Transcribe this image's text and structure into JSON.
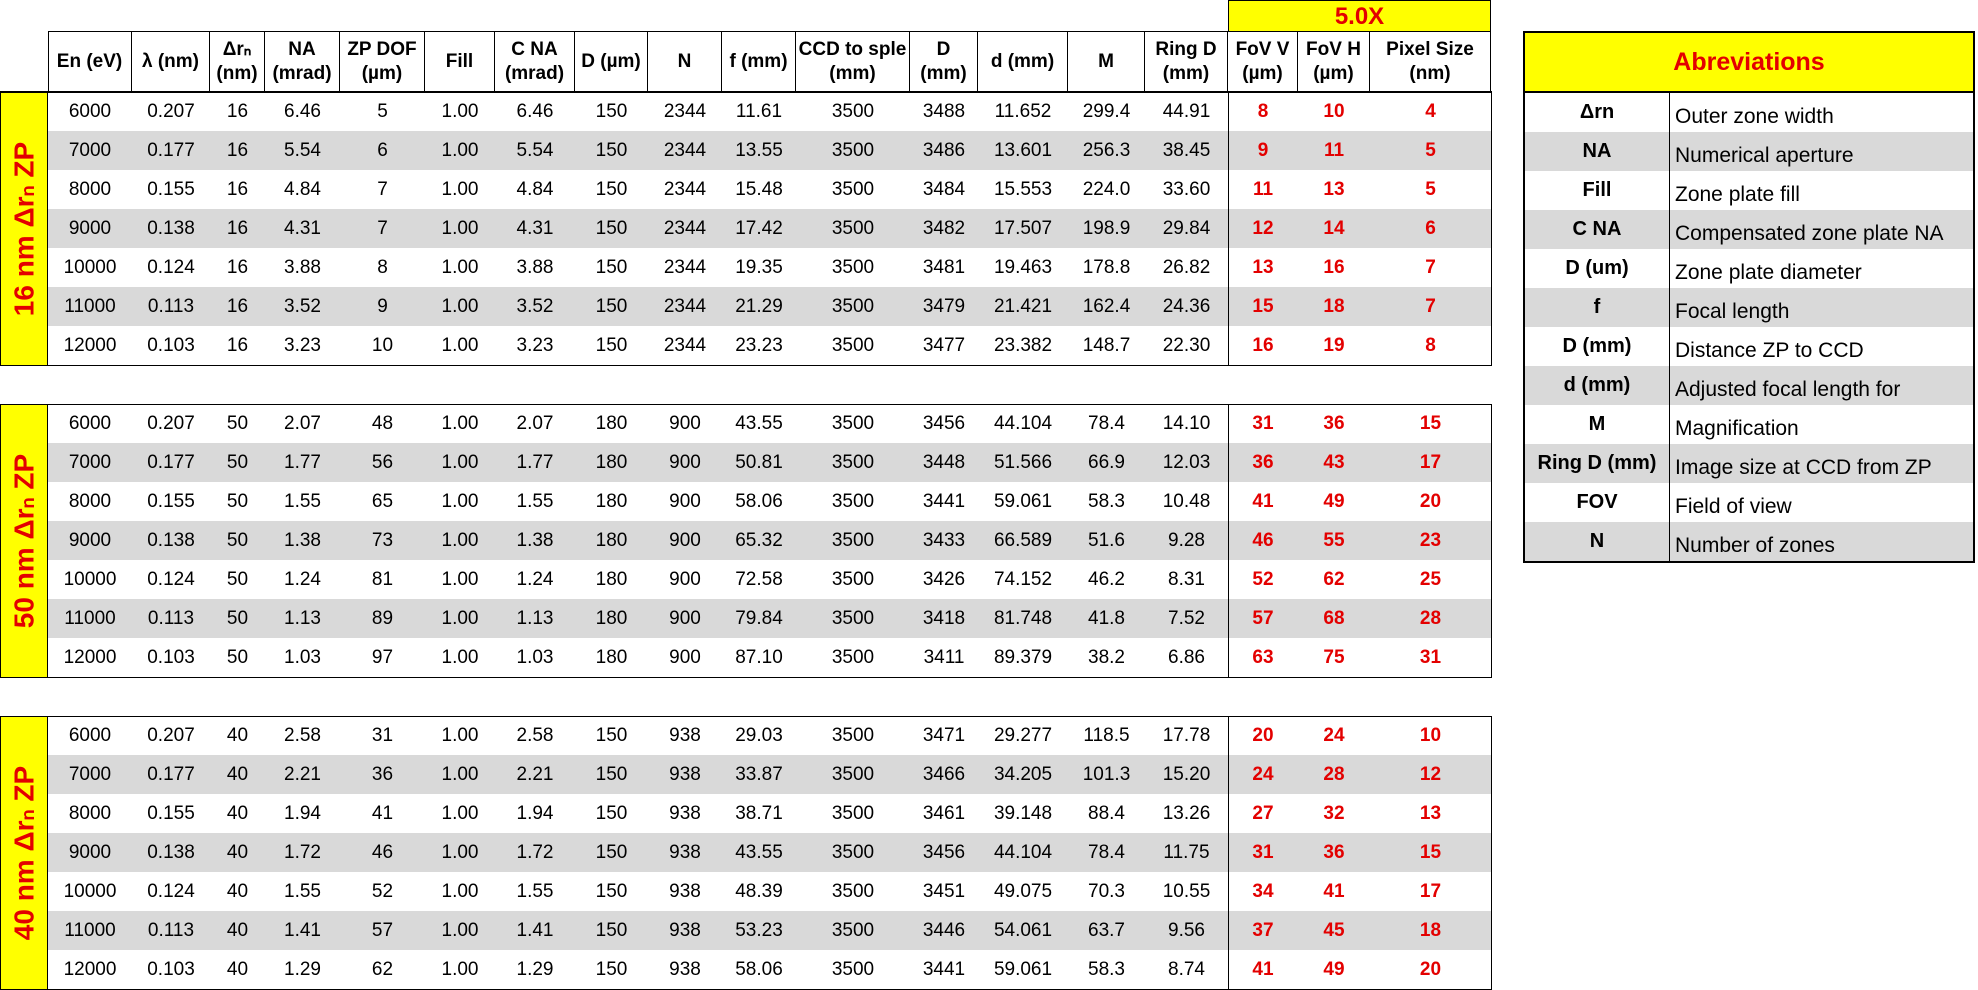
{
  "banner": "5.0X",
  "headers": [
    "En (eV)",
    "λ (nm)",
    "Δrₙ\n(nm)",
    "NA\n(mrad)",
    "ZP DOF\n(µm)",
    "Fill",
    "C NA\n(mrad)",
    "D (µm)",
    "N",
    "f (mm)",
    "CCD to sple\n(mm)",
    "D\n(mm)",
    "d (mm)",
    "M",
    "Ring D\n(mm)",
    "FoV V\n(µm)",
    "FoV H\n(µm)",
    "Pixel Size\n(nm)"
  ],
  "sections": [
    {
      "label": "16 nm Δrₙ ZP",
      "rows": [
        [
          "6000",
          "0.207",
          "16",
          "6.46",
          "5",
          "1.00",
          "6.46",
          "150",
          "2344",
          "11.61",
          "3500",
          "3488",
          "11.652",
          "299.4",
          "44.91",
          "8",
          "10",
          "4"
        ],
        [
          "7000",
          "0.177",
          "16",
          "5.54",
          "6",
          "1.00",
          "5.54",
          "150",
          "2344",
          "13.55",
          "3500",
          "3486",
          "13.601",
          "256.3",
          "38.45",
          "9",
          "11",
          "5"
        ],
        [
          "8000",
          "0.155",
          "16",
          "4.84",
          "7",
          "1.00",
          "4.84",
          "150",
          "2344",
          "15.48",
          "3500",
          "3484",
          "15.553",
          "224.0",
          "33.60",
          "11",
          "13",
          "5"
        ],
        [
          "9000",
          "0.138",
          "16",
          "4.31",
          "7",
          "1.00",
          "4.31",
          "150",
          "2344",
          "17.42",
          "3500",
          "3482",
          "17.507",
          "198.9",
          "29.84",
          "12",
          "14",
          "6"
        ],
        [
          "10000",
          "0.124",
          "16",
          "3.88",
          "8",
          "1.00",
          "3.88",
          "150",
          "2344",
          "19.35",
          "3500",
          "3481",
          "19.463",
          "178.8",
          "26.82",
          "13",
          "16",
          "7"
        ],
        [
          "11000",
          "0.113",
          "16",
          "3.52",
          "9",
          "1.00",
          "3.52",
          "150",
          "2344",
          "21.29",
          "3500",
          "3479",
          "21.421",
          "162.4",
          "24.36",
          "15",
          "18",
          "7"
        ],
        [
          "12000",
          "0.103",
          "16",
          "3.23",
          "10",
          "1.00",
          "3.23",
          "150",
          "2344",
          "23.23",
          "3500",
          "3477",
          "23.382",
          "148.7",
          "22.30",
          "16",
          "19",
          "8"
        ]
      ]
    },
    {
      "label": "50 nm Δrₙ ZP",
      "rows": [
        [
          "6000",
          "0.207",
          "50",
          "2.07",
          "48",
          "1.00",
          "2.07",
          "180",
          "900",
          "43.55",
          "3500",
          "3456",
          "44.104",
          "78.4",
          "14.10",
          "31",
          "36",
          "15"
        ],
        [
          "7000",
          "0.177",
          "50",
          "1.77",
          "56",
          "1.00",
          "1.77",
          "180",
          "900",
          "50.81",
          "3500",
          "3448",
          "51.566",
          "66.9",
          "12.03",
          "36",
          "43",
          "17"
        ],
        [
          "8000",
          "0.155",
          "50",
          "1.55",
          "65",
          "1.00",
          "1.55",
          "180",
          "900",
          "58.06",
          "3500",
          "3441",
          "59.061",
          "58.3",
          "10.48",
          "41",
          "49",
          "20"
        ],
        [
          "9000",
          "0.138",
          "50",
          "1.38",
          "73",
          "1.00",
          "1.38",
          "180",
          "900",
          "65.32",
          "3500",
          "3433",
          "66.589",
          "51.6",
          "9.28",
          "46",
          "55",
          "23"
        ],
        [
          "10000",
          "0.124",
          "50",
          "1.24",
          "81",
          "1.00",
          "1.24",
          "180",
          "900",
          "72.58",
          "3500",
          "3426",
          "74.152",
          "46.2",
          "8.31",
          "52",
          "62",
          "25"
        ],
        [
          "11000",
          "0.113",
          "50",
          "1.13",
          "89",
          "1.00",
          "1.13",
          "180",
          "900",
          "79.84",
          "3500",
          "3418",
          "81.748",
          "41.8",
          "7.52",
          "57",
          "68",
          "28"
        ],
        [
          "12000",
          "0.103",
          "50",
          "1.03",
          "97",
          "1.00",
          "1.03",
          "180",
          "900",
          "87.10",
          "3500",
          "3411",
          "89.379",
          "38.2",
          "6.86",
          "63",
          "75",
          "31"
        ]
      ]
    },
    {
      "label": "40 nm Δrₙ ZP",
      "rows": [
        [
          "6000",
          "0.207",
          "40",
          "2.58",
          "31",
          "1.00",
          "2.58",
          "150",
          "938",
          "29.03",
          "3500",
          "3471",
          "29.277",
          "118.5",
          "17.78",
          "20",
          "24",
          "10"
        ],
        [
          "7000",
          "0.177",
          "40",
          "2.21",
          "36",
          "1.00",
          "2.21",
          "150",
          "938",
          "33.87",
          "3500",
          "3466",
          "34.205",
          "101.3",
          "15.20",
          "24",
          "28",
          "12"
        ],
        [
          "8000",
          "0.155",
          "40",
          "1.94",
          "41",
          "1.00",
          "1.94",
          "150",
          "938",
          "38.71",
          "3500",
          "3461",
          "39.148",
          "88.4",
          "13.26",
          "27",
          "32",
          "13"
        ],
        [
          "9000",
          "0.138",
          "40",
          "1.72",
          "46",
          "1.00",
          "1.72",
          "150",
          "938",
          "43.55",
          "3500",
          "3456",
          "44.104",
          "78.4",
          "11.75",
          "31",
          "36",
          "15"
        ],
        [
          "10000",
          "0.124",
          "40",
          "1.55",
          "52",
          "1.00",
          "1.55",
          "150",
          "938",
          "48.39",
          "3500",
          "3451",
          "49.075",
          "70.3",
          "10.55",
          "34",
          "41",
          "17"
        ],
        [
          "11000",
          "0.113",
          "40",
          "1.41",
          "57",
          "1.00",
          "1.41",
          "150",
          "938",
          "53.23",
          "3500",
          "3446",
          "54.061",
          "63.7",
          "9.56",
          "37",
          "45",
          "18"
        ],
        [
          "12000",
          "0.103",
          "40",
          "1.29",
          "62",
          "1.00",
          "1.29",
          "150",
          "938",
          "58.06",
          "3500",
          "3441",
          "59.061",
          "58.3",
          "8.74",
          "41",
          "49",
          "20"
        ]
      ]
    }
  ],
  "abbreviations": {
    "title": "Abreviations",
    "items": [
      {
        "key": "Δrn",
        "value": "Outer zone width"
      },
      {
        "key": "NA",
        "value": "Numerical aperture"
      },
      {
        "key": "Fill",
        "value": "Zone plate fill"
      },
      {
        "key": "C NA",
        "value": "Compensated zone plate NA"
      },
      {
        "key": "D (um)",
        "value": "Zone plate diameter"
      },
      {
        "key": "f",
        "value": "Focal length"
      },
      {
        "key": "D (mm)",
        "value": "Distance ZP to CCD"
      },
      {
        "key": "d (mm)",
        "value": "Adjusted focal length for"
      },
      {
        "key": "M",
        "value": "Magnification"
      },
      {
        "key": "Ring D (mm)",
        "value": "Image size at CCD from ZP"
      },
      {
        "key": "FOV",
        "value": "Field of view"
      },
      {
        "key": "N",
        "value": "Number of zones"
      }
    ]
  },
  "colors": {
    "highlight": "#ffff00",
    "accent": "#e30000",
    "stripe": "#d9d9d9"
  }
}
